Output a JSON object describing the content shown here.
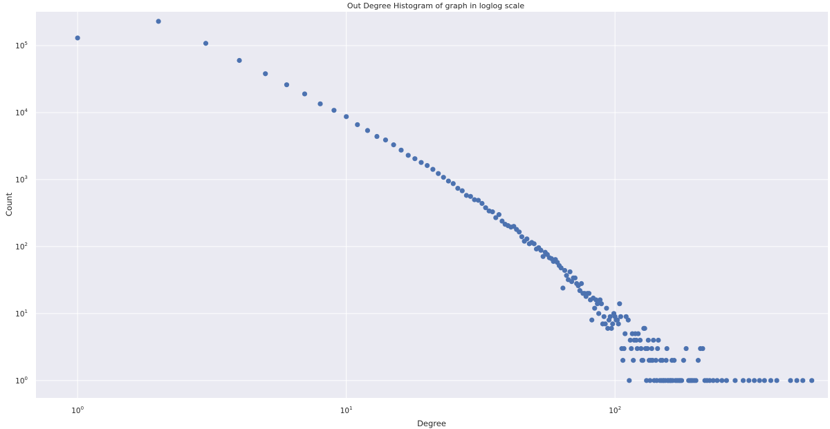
{
  "chart_data": {
    "type": "scatter",
    "title": "Out Degree Histogram of graph in loglog scale",
    "xlabel": "Degree",
    "ylabel": "Count",
    "xscale": "log",
    "yscale": "log",
    "xlim": [
      0.7,
      620
    ],
    "ylim": [
      0.55,
      320000
    ],
    "grid": true,
    "background_color": "#eaeaf2",
    "grid_color": "#ffffff",
    "marker_color": "#4c72b0",
    "x_ticks": [
      {
        "base": "10",
        "exp": "0",
        "value": 1
      },
      {
        "base": "10",
        "exp": "1",
        "value": 10
      },
      {
        "base": "10",
        "exp": "2",
        "value": 100
      }
    ],
    "y_ticks": [
      {
        "base": "10",
        "exp": "0",
        "value": 1
      },
      {
        "base": "10",
        "exp": "1",
        "value": 10
      },
      {
        "base": "10",
        "exp": "2",
        "value": 100
      },
      {
        "base": "10",
        "exp": "3",
        "value": 1000
      },
      {
        "base": "10",
        "exp": "4",
        "value": 10000
      },
      {
        "base": "10",
        "exp": "5",
        "value": 100000
      }
    ],
    "points": [
      [
        1,
        130000
      ],
      [
        2,
        230000
      ],
      [
        3,
        108000
      ],
      [
        4,
        60000
      ],
      [
        5,
        38000
      ],
      [
        6,
        26000
      ],
      [
        7,
        19000
      ],
      [
        8,
        13500
      ],
      [
        9,
        10800
      ],
      [
        10,
        8700
      ],
      [
        11,
        6600
      ],
      [
        12,
        5400
      ],
      [
        13,
        4400
      ],
      [
        14,
        3900
      ],
      [
        15,
        3300
      ],
      [
        16,
        2750
      ],
      [
        17,
        2300
      ],
      [
        18,
        2050
      ],
      [
        19,
        1800
      ],
      [
        20,
        1620
      ],
      [
        21,
        1420
      ],
      [
        22,
        1230
      ],
      [
        23,
        1080
      ],
      [
        24,
        950
      ],
      [
        25,
        870
      ],
      [
        26,
        740
      ],
      [
        27,
        680
      ],
      [
        28,
        580
      ],
      [
        29,
        560
      ],
      [
        30,
        500
      ],
      [
        31,
        490
      ],
      [
        32,
        440
      ],
      [
        33,
        380
      ],
      [
        34,
        340
      ],
      [
        35,
        330
      ],
      [
        36,
        270
      ],
      [
        37,
        300
      ],
      [
        38,
        240
      ],
      [
        39,
        215
      ],
      [
        40,
        205
      ],
      [
        41,
        195
      ],
      [
        42,
        200
      ],
      [
        43,
        180
      ],
      [
        44,
        165
      ],
      [
        45,
        140
      ],
      [
        46,
        120
      ],
      [
        47,
        130
      ],
      [
        48,
        110
      ],
      [
        49,
        115
      ],
      [
        50,
        110
      ],
      [
        51,
        92
      ],
      [
        52,
        96
      ],
      [
        53,
        88
      ],
      [
        54,
        71
      ],
      [
        55,
        82
      ],
      [
        56,
        76
      ],
      [
        57,
        68
      ],
      [
        58,
        66
      ],
      [
        59,
        60
      ],
      [
        60,
        64
      ],
      [
        61,
        58
      ],
      [
        62,
        52
      ],
      [
        63,
        48
      ],
      [
        64,
        24
      ],
      [
        65,
        44
      ],
      [
        66,
        37
      ],
      [
        67,
        32
      ],
      [
        68,
        42
      ],
      [
        69,
        30
      ],
      [
        70,
        34
      ],
      [
        71,
        34
      ],
      [
        72,
        28
      ],
      [
        73,
        26
      ],
      [
        74,
        22
      ],
      [
        75,
        28
      ],
      [
        76,
        20
      ],
      [
        77,
        20
      ],
      [
        78,
        18
      ],
      [
        79,
        20
      ],
      [
        80,
        20
      ],
      [
        81,
        16
      ],
      [
        82,
        8
      ],
      [
        83,
        17
      ],
      [
        84,
        12
      ],
      [
        85,
        16
      ],
      [
        86,
        14
      ],
      [
        87,
        10
      ],
      [
        88,
        16
      ],
      [
        89,
        14
      ],
      [
        90,
        7
      ],
      [
        91,
        9
      ],
      [
        92,
        7
      ],
      [
        93,
        12
      ],
      [
        94,
        6
      ],
      [
        95,
        8
      ],
      [
        96,
        9
      ],
      [
        97,
        6
      ],
      [
        98,
        7
      ],
      [
        99,
        10
      ],
      [
        100,
        9
      ],
      [
        101,
        8
      ],
      [
        102,
        8
      ],
      [
        103,
        7
      ],
      [
        104,
        14
      ],
      [
        105,
        9
      ],
      [
        106,
        3
      ],
      [
        107,
        2
      ],
      [
        108,
        3
      ],
      [
        109,
        5
      ],
      [
        110,
        9
      ],
      [
        112,
        8
      ],
      [
        113,
        1
      ],
      [
        114,
        4
      ],
      [
        115,
        3
      ],
      [
        116,
        5
      ],
      [
        117,
        2
      ],
      [
        118,
        4
      ],
      [
        119,
        5
      ],
      [
        120,
        4
      ],
      [
        121,
        3
      ],
      [
        122,
        5
      ],
      [
        124,
        4
      ],
      [
        125,
        3
      ],
      [
        126,
        2
      ],
      [
        127,
        2
      ],
      [
        128,
        6
      ],
      [
        129,
        6
      ],
      [
        130,
        3
      ],
      [
        131,
        1
      ],
      [
        132,
        3
      ],
      [
        133,
        4
      ],
      [
        134,
        2
      ],
      [
        135,
        1
      ],
      [
        136,
        2
      ],
      [
        137,
        3
      ],
      [
        138,
        2
      ],
      [
        139,
        4
      ],
      [
        140,
        1
      ],
      [
        142,
        2
      ],
      [
        143,
        1
      ],
      [
        144,
        3
      ],
      [
        145,
        4
      ],
      [
        147,
        1
      ],
      [
        148,
        2
      ],
      [
        149,
        1
      ],
      [
        150,
        2
      ],
      [
        151,
        1
      ],
      [
        152,
        1
      ],
      [
        154,
        1
      ],
      [
        155,
        2
      ],
      [
        156,
        3
      ],
      [
        157,
        1
      ],
      [
        158,
        1
      ],
      [
        160,
        1
      ],
      [
        161,
        1
      ],
      [
        162,
        1
      ],
      [
        163,
        2
      ],
      [
        164,
        1
      ],
      [
        166,
        2
      ],
      [
        168,
        1
      ],
      [
        170,
        1
      ],
      [
        172,
        1
      ],
      [
        174,
        1
      ],
      [
        175,
        1
      ],
      [
        177,
        1
      ],
      [
        180,
        2
      ],
      [
        184,
        3
      ],
      [
        188,
        1
      ],
      [
        190,
        1
      ],
      [
        192,
        1
      ],
      [
        194,
        1
      ],
      [
        197,
        1
      ],
      [
        200,
        1
      ],
      [
        204,
        2
      ],
      [
        208,
        3
      ],
      [
        212,
        3
      ],
      [
        216,
        1
      ],
      [
        220,
        1
      ],
      [
        225,
        1
      ],
      [
        232,
        1
      ],
      [
        240,
        1
      ],
      [
        250,
        1
      ],
      [
        260,
        1
      ],
      [
        280,
        1
      ],
      [
        300,
        1
      ],
      [
        315,
        1
      ],
      [
        330,
        1
      ],
      [
        345,
        1
      ],
      [
        360,
        1
      ],
      [
        380,
        1
      ],
      [
        400,
        1
      ],
      [
        450,
        1
      ],
      [
        475,
        1
      ],
      [
        500,
        1
      ],
      [
        540,
        1
      ]
    ]
  }
}
